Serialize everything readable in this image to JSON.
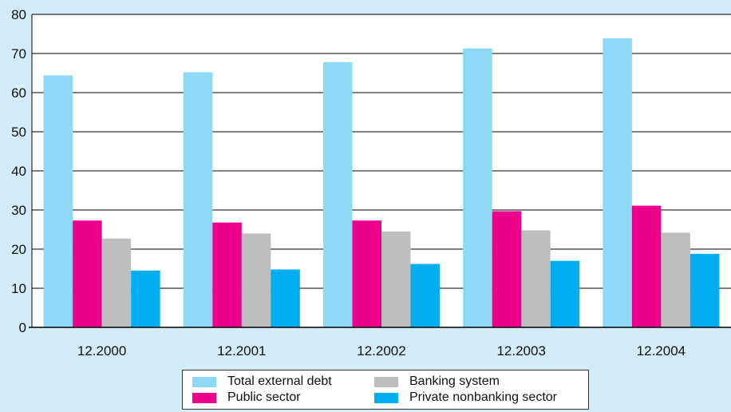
{
  "chart_data": {
    "type": "bar",
    "title": "",
    "xlabel": "",
    "ylabel": "",
    "categories": [
      "12.2000",
      "12.2001",
      "12.2002",
      "12.2003",
      "12.2004"
    ],
    "ylim": [
      0,
      80
    ],
    "yticks": [
      0,
      10,
      20,
      30,
      40,
      50,
      60,
      70,
      80
    ],
    "grid": true,
    "legend_position": "bottom",
    "series": [
      {
        "name": "Total external debt",
        "color": "#8dd8f5",
        "values": [
          64.4,
          65.2,
          67.8,
          71.3,
          73.9
        ]
      },
      {
        "name": "Public sector",
        "color": "#ec008c",
        "values": [
          27.3,
          26.8,
          27.3,
          29.7,
          31.1
        ]
      },
      {
        "name": "Banking system",
        "color": "#bcbec0",
        "values": [
          22.7,
          24.0,
          24.5,
          24.8,
          24.2
        ]
      },
      {
        "name": "Private nonbanking sector",
        "color": "#00aeef",
        "values": [
          14.5,
          14.8,
          16.2,
          17.0,
          18.8
        ]
      }
    ]
  }
}
